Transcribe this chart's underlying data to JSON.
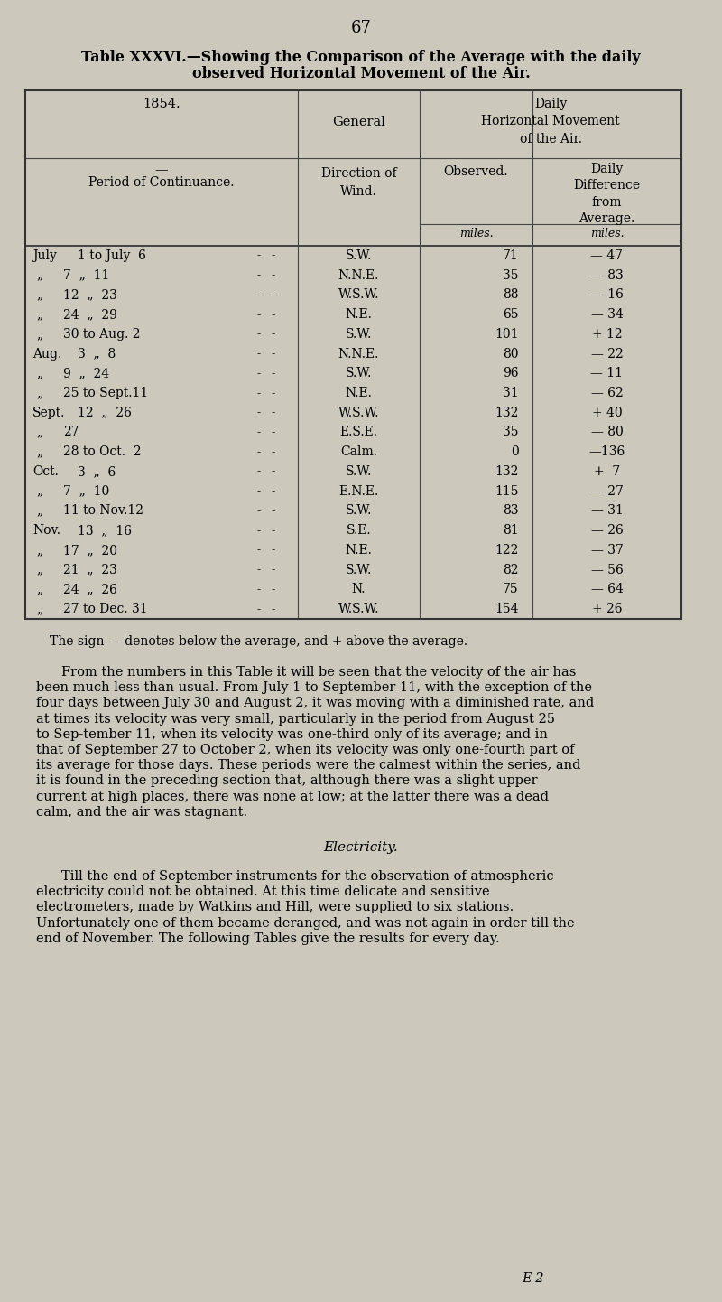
{
  "page_number": "67",
  "title_line1": "Table XXXVI.—Showing the Comparison of the Average with the daily",
  "title_line2": "observed Horizontal Movement of the Air.",
  "bg_color": "#ccc8bc",
  "rows": [
    [
      "July",
      "1 to July  6",
      "S.W.",
      "71",
      "— 47"
    ],
    [
      "„",
      "7  „  11",
      "N.N.E.",
      "35",
      "— 83"
    ],
    [
      "„",
      "12  „  23",
      "W.S.W.",
      "88",
      "— 16"
    ],
    [
      "„",
      "24  „  29",
      "N.E.",
      "65",
      "— 34"
    ],
    [
      "„",
      "30 to Aug. 2",
      "S.W.",
      "101",
      "+ 12"
    ],
    [
      "Aug.",
      "3  „  8",
      "N.N.E.",
      "80",
      "— 22"
    ],
    [
      "„",
      "9  „  24",
      "S.W.",
      "96",
      "— 11"
    ],
    [
      "„",
      "25 to Sept.11",
      "N.E.",
      "31",
      "— 62"
    ],
    [
      "Sept.",
      "12  „  26",
      "W.S.W.",
      "132",
      "+ 40"
    ],
    [
      "„",
      "27",
      "E.S.E.",
      "35",
      "— 80"
    ],
    [
      "„",
      "28 to Oct.  2",
      "Calm.",
      "0",
      "—136"
    ],
    [
      "Oct.",
      "3  „  6",
      "S.W.",
      "132",
      "+  7"
    ],
    [
      "„",
      "7  „  10",
      "E.N.E.",
      "115",
      "— 27"
    ],
    [
      "„",
      "11 to Nov.12",
      "S.W.",
      "83",
      "— 31"
    ],
    [
      "Nov.",
      "13  „  16",
      "S.E.",
      "81",
      "— 26"
    ],
    [
      "„",
      "17  „  20",
      "N.E.",
      "122",
      "— 37"
    ],
    [
      "„",
      "21  „  23",
      "S.W.",
      "82",
      "— 56"
    ],
    [
      "„",
      "24  „  26",
      "N.",
      "75",
      "— 64"
    ],
    [
      "„",
      "27 to Dec. 31",
      "W.S.W.",
      "154",
      "+ 26"
    ]
  ],
  "footnote": "The sign — denotes below the average, and + above the average.",
  "paragraph1": "From the numbers in this Table it will be seen that the velocity of the air has been much less than usual.  From July 1 to September 11, with the exception of the four days between July 30 and August 2, it was moving with a diminished rate, and at times its velocity was very small, particularly in the period from August 25 to Sep-tember 11, when its velocity was one-third only of its average; and in that of September 27 to October 2, when its velocity was only one-fourth part of its average for those days.  These periods were the calmest within the series, and it is found in the preceding section that, although there was a slight upper current at high places, there was none at low; at the latter there was a dead calm, and the air was stagnant.",
  "section_title": "Electricity.",
  "paragraph2": "Till the end of September instruments for the observation of atmospheric electricity could not be obtained.  At this time delicate and sensitive electrometers, made by Watkins and Hill, were supplied to six stations.  Unfortunately one of them became deranged, and was not again in order till the end of November. The following Tables give the results for every day.",
  "footer": "E 2"
}
